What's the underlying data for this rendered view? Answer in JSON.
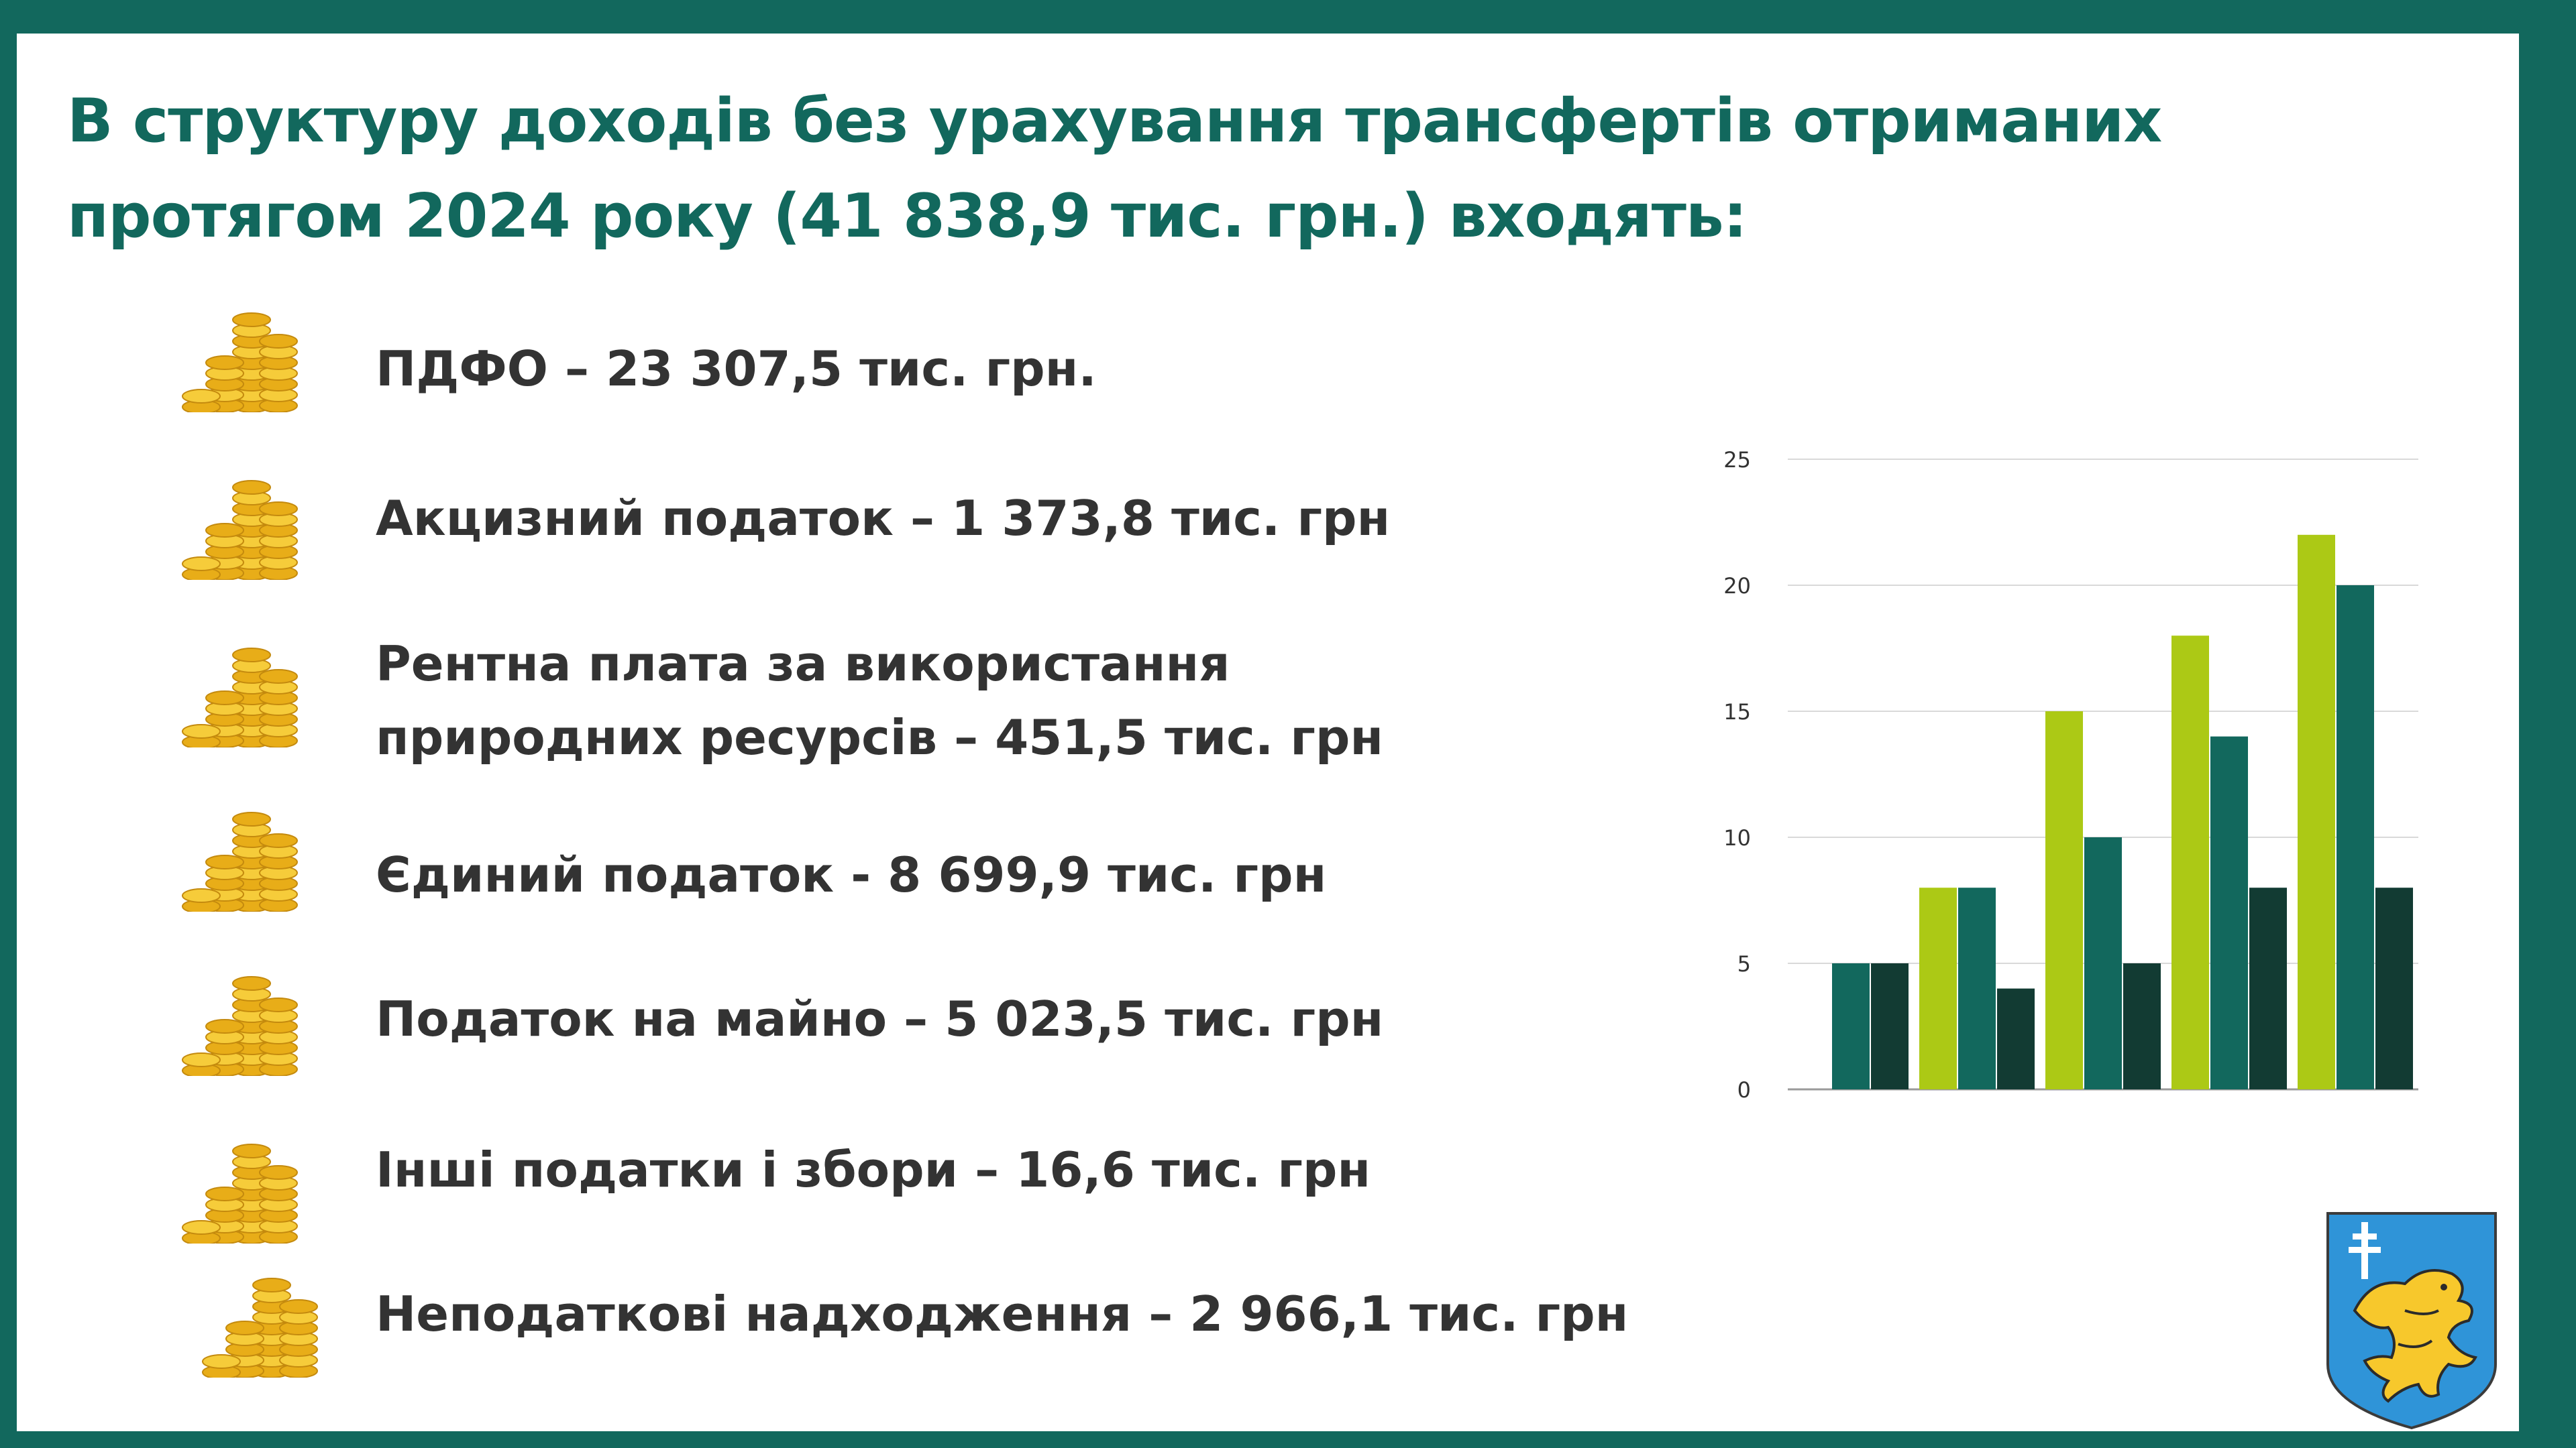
{
  "title": {
    "line1": "В структуру доходів без урахування трансфертів отриманих",
    "line2": "протягом 2024 року (41 838,9 тис. грн.) входять:"
  },
  "items": [
    {
      "label": "ПДФО – 23 307,5 тис. грн.",
      "icon": "coins-stack-icon"
    },
    {
      "label": "Акцизний податок – 1 373,8 тис. грн",
      "icon": "coins-stack-icon"
    },
    {
      "label_line1": "Рентна плата за використання",
      "label_line2": "природних ресурсів – 451,5 тис. грн",
      "icon": "coins-stack-icon"
    },
    {
      "label": "Єдиний податок - 8 699,9 тис. грн",
      "icon": "coins-stack-icon"
    },
    {
      "label": "Податок на майно – 5 023,5 тис. грн",
      "icon": "coins-stack-icon"
    },
    {
      "label": "Інші податки і збори – 16,6 тис. грн",
      "icon": "coins-stack-icon"
    },
    {
      "label": "Неподаткові надходження – 2 966,1 тис. грн",
      "icon": "coins-stack-icon"
    }
  ],
  "chart_data": {
    "type": "bar",
    "categories": [
      "",
      "",
      "",
      "",
      ""
    ],
    "series": [
      {
        "values": [
          0,
          8,
          15,
          18,
          22
        ],
        "color": "#acc915"
      },
      {
        "values": [
          5,
          8,
          10,
          14,
          20
        ],
        "color": "#12685d"
      },
      {
        "values": [
          5,
          4,
          5,
          8,
          8
        ],
        "color": "#123b33"
      }
    ],
    "yticks": [
      "0",
      "5",
      "10",
      "15",
      "20",
      "25"
    ],
    "ylim": [
      0,
      25
    ],
    "grid": true,
    "legend": "none"
  },
  "colors": {
    "frame": "#12685d",
    "title": "#12685d",
    "text": "#333333",
    "coin": "#f2c12e",
    "crest_shield": "#2f94d8",
    "crest_lion": "#f7c82c"
  },
  "emblem": {
    "icon": "coat-of-arms-icon"
  }
}
